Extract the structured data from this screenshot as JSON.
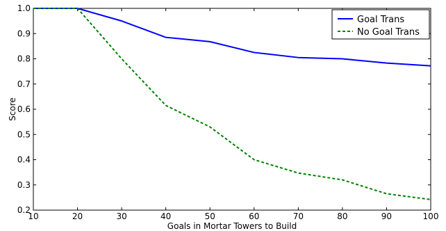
{
  "chart_data": {
    "type": "line",
    "title": "",
    "xlabel": "Goals in Mortar Towers to Build",
    "ylabel": "Score",
    "xlim": [
      10,
      100
    ],
    "ylim": [
      0.2,
      1.0
    ],
    "x_ticks": [
      "10",
      "20",
      "30",
      "40",
      "50",
      "60",
      "70",
      "80",
      "90",
      "100"
    ],
    "y_ticks": [
      "0.2",
      "0.3",
      "0.4",
      "0.5",
      "0.6",
      "0.7",
      "0.8",
      "0.9",
      "1.0"
    ],
    "grid": false,
    "legend_position": "top-right",
    "x": [
      10,
      20,
      30,
      40,
      50,
      60,
      70,
      80,
      90,
      100
    ],
    "series": [
      {
        "name": "Goal Trans",
        "values": [
          1.0,
          1.0,
          0.95,
          0.885,
          0.868,
          0.825,
          0.805,
          0.8,
          0.783,
          0.772
        ],
        "color": "#0000ff",
        "dash": "solid"
      },
      {
        "name": "No Goal Trans",
        "values": [
          1.0,
          1.0,
          0.8,
          0.615,
          0.53,
          0.4,
          0.347,
          0.32,
          0.265,
          0.242
        ],
        "color": "#008000",
        "dash": "dashed"
      }
    ]
  }
}
